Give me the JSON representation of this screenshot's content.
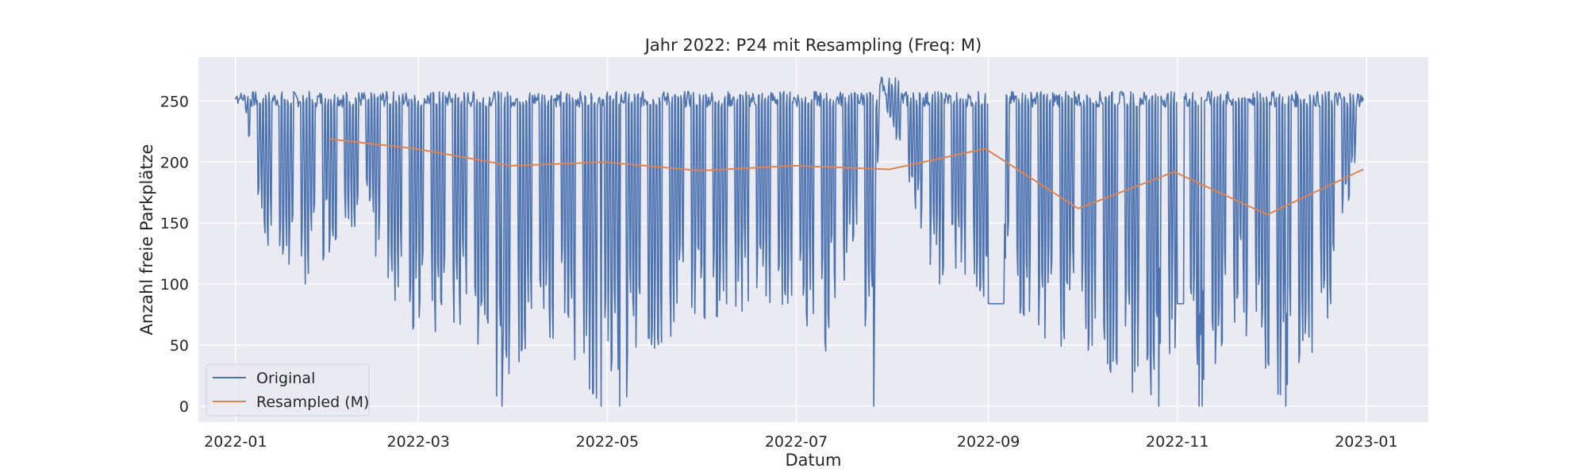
{
  "chart_data": {
    "type": "line",
    "title": "Jahr 2022: P24 mit Resampling (Freq: M)",
    "xlabel": "Datum",
    "ylabel": "Anzahl freie Parkplätze",
    "xlim": [
      "2021-12-20",
      "2023-01-21"
    ],
    "ylim": [
      -13,
      286
    ],
    "x_ticks": [
      "2022-01",
      "2022-03",
      "2022-05",
      "2022-07",
      "2022-09",
      "2022-11",
      "2023-01"
    ],
    "y_ticks": [
      0,
      50,
      100,
      150,
      200,
      250
    ],
    "grid": true,
    "legend_position": "lower-left",
    "colors": {
      "background": "#eaeaf2",
      "grid": "#ffffff",
      "original": "#4c72b0",
      "resampled": "#dd8452"
    },
    "series": [
      {
        "name": "Original",
        "color": "#4c72b0",
        "description_points": [
          [
            "2022-01-01",
            255
          ],
          [
            "2022-01-04",
            250
          ],
          [
            "2022-01-08",
            150
          ],
          [
            "2022-01-15",
            105
          ],
          [
            "2022-01-22",
            95
          ],
          [
            "2022-01-30",
            120
          ],
          [
            "2022-02-10",
            150
          ],
          [
            "2022-02-20",
            90
          ],
          [
            "2022-03-02",
            50
          ],
          [
            "2022-03-15",
            60
          ],
          [
            "2022-03-28",
            0
          ],
          [
            "2022-04-10",
            65
          ],
          [
            "2022-04-29",
            0
          ],
          [
            "2022-05-02",
            30
          ],
          [
            "2022-05-05",
            0
          ],
          [
            "2022-05-20",
            50
          ],
          [
            "2022-06-01",
            60
          ],
          [
            "2022-06-20",
            75
          ],
          [
            "2022-07-01",
            85
          ],
          [
            "2022-07-10",
            30
          ],
          [
            "2022-07-20",
            140
          ],
          [
            "2022-07-26",
            0
          ],
          [
            "2022-07-28",
            262
          ],
          [
            "2022-08-15",
            100
          ],
          [
            "2022-09-01",
            84
          ],
          [
            "2022-09-25",
            45
          ],
          [
            "2022-10-25",
            0
          ],
          [
            "2022-11-05",
            84
          ],
          [
            "2022-11-08",
            0
          ],
          [
            "2022-11-20",
            60
          ],
          [
            "2022-12-05",
            0
          ],
          [
            "2022-12-20",
            60
          ],
          [
            "2022-12-31",
            240
          ]
        ]
      },
      {
        "name": "Resampled (M)",
        "color": "#dd8452",
        "x": [
          "2022-01-31",
          "2022-02-28",
          "2022-03-31",
          "2022-04-30",
          "2022-05-31",
          "2022-06-30",
          "2022-07-31",
          "2022-08-31",
          "2022-09-30",
          "2022-10-31",
          "2022-11-30",
          "2022-12-31"
        ],
        "values": [
          219,
          211,
          197,
          200,
          193,
          197,
          194,
          211,
          162,
          192,
          157,
          194
        ]
      }
    ]
  }
}
